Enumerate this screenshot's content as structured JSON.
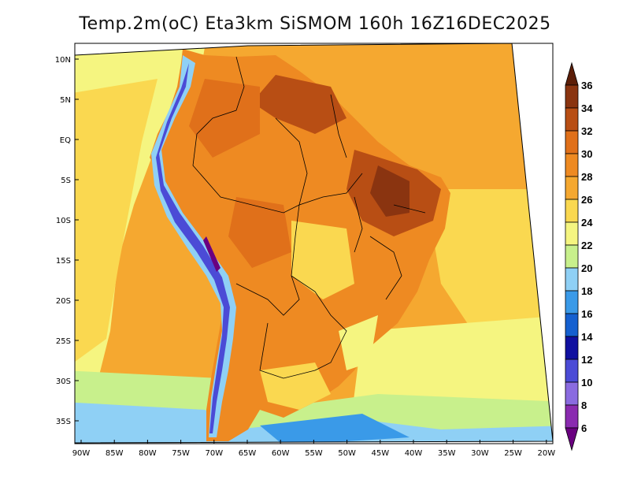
{
  "title": "Temp.2m(oC) Eta3km SiSMOM 160h 16Z16DEC2025",
  "map": {
    "lat_ticks": [
      "10N",
      "5N",
      "EQ",
      "5S",
      "10S",
      "15S",
      "20S",
      "25S",
      "30S",
      "35S"
    ],
    "lon_ticks": [
      "90W",
      "85W",
      "80W",
      "75W",
      "70W",
      "65W",
      "60W",
      "55W",
      "50W",
      "45W",
      "40W",
      "35W",
      "30W",
      "25W",
      "20W"
    ]
  },
  "colorbar": {
    "levels": [
      "6",
      "8",
      "10",
      "12",
      "14",
      "16",
      "18",
      "20",
      "22",
      "24",
      "26",
      "28",
      "30",
      "32",
      "34",
      "36"
    ],
    "colors": [
      "#6a0080",
      "#8a2bb0",
      "#8a6be0",
      "#4b4bd6",
      "#1010a0",
      "#1560d0",
      "#3a9ae8",
      "#8fd0f5",
      "#c8f08c",
      "#f5f580",
      "#fad850",
      "#f5a830",
      "#ee8a22",
      "#e0701a",
      "#b84e14",
      "#8a3410",
      "#5c1e08"
    ]
  },
  "colors": {
    "ocean_warm": "#f5a830",
    "ocean_mild": "#fad850",
    "ocean_cool": "#f5f580",
    "ocean_south": "#8fd0f5",
    "land_hot": "#ee8a22",
    "land_very_hot": "#b84e14",
    "andes_cold": "#4b4bd6",
    "boundary": "#000000"
  }
}
